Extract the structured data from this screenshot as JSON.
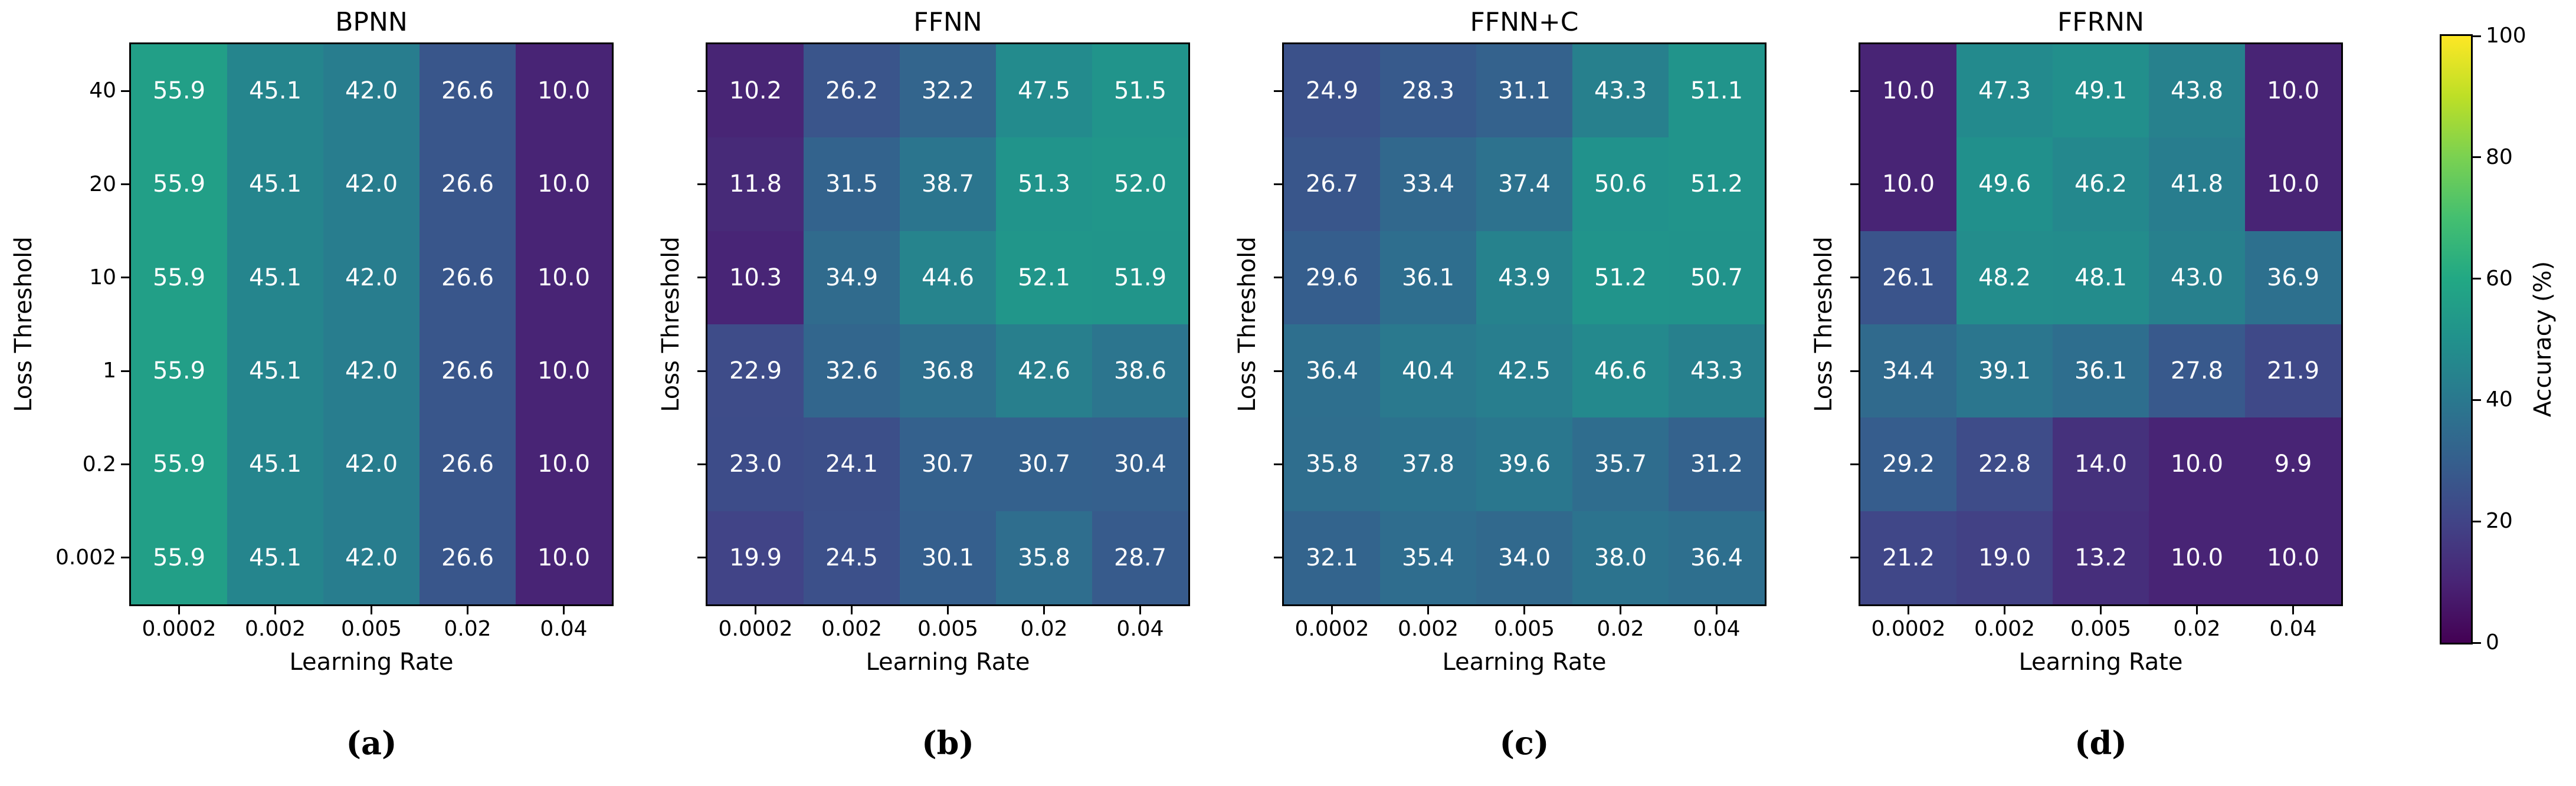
{
  "figure": {
    "captions": [
      "(a)",
      "(b)",
      "(c)",
      "(d)"
    ],
    "colorbar": {
      "label": "Accuracy (%)",
      "vmin": 0,
      "vmax": 100,
      "ticks": [
        0,
        20,
        40,
        60,
        80,
        100
      ]
    },
    "cell_text_color": "#ffffff"
  },
  "colormap": {
    "name": "viridis",
    "stops": [
      "#440154",
      "#482475",
      "#414487",
      "#355f8d",
      "#2a788e",
      "#21918c",
      "#22a884",
      "#44bf70",
      "#7ad151",
      "#bddf26",
      "#fde725"
    ]
  },
  "chart_data": [
    {
      "type": "heatmap",
      "title": "BPNN",
      "caption": "(a)",
      "xlabel": "Learning Rate",
      "ylabel": "Loss Threshold",
      "x_ticklabels": [
        "0.0002",
        "0.002",
        "0.005",
        "0.02",
        "0.04"
      ],
      "y_ticklabels": [
        "40",
        "20",
        "10",
        "1",
        "0.2",
        "0.002"
      ],
      "show_y_ticklabels": true,
      "vmin": 0,
      "vmax": 100,
      "values": [
        [
          55.9,
          45.1,
          42.0,
          26.6,
          10.0
        ],
        [
          55.9,
          45.1,
          42.0,
          26.6,
          10.0
        ],
        [
          55.9,
          45.1,
          42.0,
          26.6,
          10.0
        ],
        [
          55.9,
          45.1,
          42.0,
          26.6,
          10.0
        ],
        [
          55.9,
          45.1,
          42.0,
          26.6,
          10.0
        ],
        [
          55.9,
          45.1,
          42.0,
          26.6,
          10.0
        ]
      ]
    },
    {
      "type": "heatmap",
      "title": "FFNN",
      "caption": "(b)",
      "xlabel": "Learning Rate",
      "ylabel": "Loss Threshold",
      "x_ticklabels": [
        "0.0002",
        "0.002",
        "0.005",
        "0.02",
        "0.04"
      ],
      "y_ticklabels": [
        "40",
        "20",
        "10",
        "1",
        "0.2",
        "0.002"
      ],
      "show_y_ticklabels": false,
      "vmin": 0,
      "vmax": 100,
      "values": [
        [
          10.2,
          26.2,
          32.2,
          47.5,
          51.5
        ],
        [
          11.8,
          31.5,
          38.7,
          51.3,
          52.0
        ],
        [
          10.3,
          34.9,
          44.6,
          52.1,
          51.9
        ],
        [
          22.9,
          32.6,
          36.8,
          42.6,
          38.6
        ],
        [
          23.0,
          24.1,
          30.7,
          30.7,
          30.4
        ],
        [
          19.9,
          24.5,
          30.1,
          35.8,
          28.7
        ]
      ]
    },
    {
      "type": "heatmap",
      "title": "FFNN+C",
      "caption": "(c)",
      "xlabel": "Learning Rate",
      "ylabel": "Loss Threshold",
      "x_ticklabels": [
        "0.0002",
        "0.002",
        "0.005",
        "0.02",
        "0.04"
      ],
      "y_ticklabels": [
        "40",
        "20",
        "10",
        "1",
        "0.2",
        "0.002"
      ],
      "show_y_ticklabels": false,
      "vmin": 0,
      "vmax": 100,
      "values": [
        [
          24.9,
          28.3,
          31.1,
          43.3,
          51.1
        ],
        [
          26.7,
          33.4,
          37.4,
          50.6,
          51.2
        ],
        [
          29.6,
          36.1,
          43.9,
          51.2,
          50.7
        ],
        [
          36.4,
          40.4,
          42.5,
          46.6,
          43.3
        ],
        [
          35.8,
          37.8,
          39.6,
          35.7,
          31.2
        ],
        [
          32.1,
          35.4,
          34.0,
          38.0,
          36.4
        ]
      ]
    },
    {
      "type": "heatmap",
      "title": "FFRNN",
      "caption": "(d)",
      "xlabel": "Learning Rate",
      "ylabel": "Loss Threshold",
      "x_ticklabels": [
        "0.0002",
        "0.002",
        "0.005",
        "0.02",
        "0.04"
      ],
      "y_ticklabels": [
        "40",
        "20",
        "10",
        "1",
        "0.2",
        "0.002"
      ],
      "show_y_ticklabels": false,
      "vmin": 0,
      "vmax": 100,
      "values": [
        [
          10.0,
          47.3,
          49.1,
          43.8,
          10.0
        ],
        [
          10.0,
          49.6,
          46.2,
          41.8,
          10.0
        ],
        [
          26.1,
          48.2,
          48.1,
          43.0,
          36.9
        ],
        [
          34.4,
          39.1,
          36.1,
          27.8,
          21.9
        ],
        [
          29.2,
          22.8,
          14.0,
          10.0,
          9.9
        ],
        [
          21.2,
          19.0,
          13.2,
          10.0,
          10.0
        ]
      ]
    }
  ]
}
